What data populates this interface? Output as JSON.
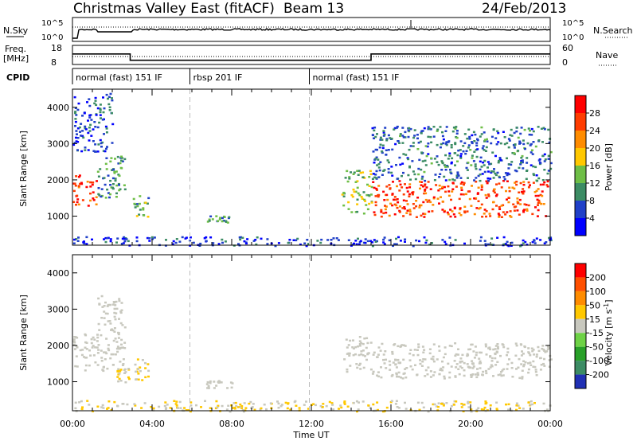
{
  "header": {
    "title": "Christmas Valley East (fitACF)",
    "beam": "Beam 13",
    "date": "24/Feb/2013"
  },
  "status_panels": {
    "nsky_label": "N.Sky",
    "nsky_ticks": [
      "10^5",
      "10^0"
    ],
    "nsearch_label": "N.Search",
    "freq_label_1": "Freq.",
    "freq_label_2": "[MHz]",
    "freq_ticks": [
      "18",
      "8"
    ],
    "nave_label": "Nave",
    "nave_ticks": [
      "60",
      "0"
    ],
    "cpid_label": "CPID",
    "cpid_segments": [
      {
        "label": "normal (fast) 151 IF",
        "start_hour": 0,
        "end_hour": 5.9
      },
      {
        "label": "rbsp 201 IF",
        "start_hour": 5.9,
        "end_hour": 11.9
      },
      {
        "label": "normal (fast) 151 IF",
        "start_hour": 11.9,
        "end_hour": 24
      }
    ],
    "freq_mhz": [
      {
        "start_hour": 0,
        "end_hour": 2.9,
        "value": 13.5
      },
      {
        "start_hour": 2.9,
        "end_hour": 15.0,
        "value": 10.2
      },
      {
        "start_hour": 15.0,
        "end_hour": 24,
        "value": 13.5
      }
    ]
  },
  "chart_data": [
    {
      "type": "heatmap",
      "name": "power",
      "ylabel": "Slant Range [km]",
      "xlabel": "",
      "x_ticks": [
        "00:00",
        "04:00",
        "08:00",
        "12:00",
        "16:00",
        "20:00",
        "00:00"
      ],
      "x_range_hours": [
        0,
        24
      ],
      "y_ticks": [
        "1000",
        "2000",
        "3000",
        "4000"
      ],
      "y_range_km": [
        200,
        4500
      ],
      "colorbar": {
        "label": "Power [dB]",
        "ticks": [
          "4",
          "8",
          "12",
          "16",
          "20",
          "24",
          "28"
        ],
        "range": [
          0,
          32
        ],
        "colors": [
          "#0000ff",
          "#2040c8",
          "#3c8c64",
          "#6ebe46",
          "#ffc800",
          "#ff8c00",
          "#ff3c00",
          "#ff0000"
        ]
      },
      "echo_regions": [
        {
          "t0": 0.0,
          "t1": 1.2,
          "r0": 1300,
          "r1": 2200,
          "level": 26
        },
        {
          "t0": 1.2,
          "t1": 2.6,
          "r0": 1500,
          "r1": 2800,
          "level": 10
        },
        {
          "t0": 0.0,
          "t1": 2.0,
          "r0": 2800,
          "r1": 4400,
          "level": 6
        },
        {
          "t0": 3.0,
          "t1": 3.8,
          "r0": 1000,
          "r1": 1600,
          "level": 12
        },
        {
          "t0": 6.7,
          "t1": 8.0,
          "r0": 850,
          "r1": 1050,
          "level": 10
        },
        {
          "t0": 13.5,
          "t1": 15.0,
          "r0": 1100,
          "r1": 2300,
          "level": 14
        },
        {
          "t0": 15.0,
          "t1": 24.0,
          "r0": 1000,
          "r1": 2000,
          "level": 26
        },
        {
          "t0": 15.0,
          "t1": 24.0,
          "r0": 2000,
          "r1": 3500,
          "level": 8
        },
        {
          "t0": 0.0,
          "t1": 24.0,
          "r0": 200,
          "r1": 450,
          "level": 5
        }
      ]
    },
    {
      "type": "heatmap",
      "name": "velocity",
      "ylabel": "Slant Range [km]",
      "xlabel": "Time UT",
      "x_ticks": [
        "00:00",
        "04:00",
        "08:00",
        "12:00",
        "16:00",
        "20:00",
        "00:00"
      ],
      "x_range_hours": [
        0,
        24
      ],
      "y_ticks": [
        "1000",
        "2000",
        "3000",
        "4000"
      ],
      "y_range_km": [
        200,
        4500
      ],
      "colorbar": {
        "label": "Velocity [m s-1]",
        "label_main": "Velocity [m s",
        "label_sup": "-1",
        "label_end": "]",
        "ticks": [
          "200",
          "100",
          "50",
          "15",
          "-15",
          "-50",
          "-100",
          "-200"
        ],
        "range": [
          -250,
          250
        ],
        "colors": [
          "#2030b4",
          "#3c8c64",
          "#28a028",
          "#6ed246",
          "#c8c8be",
          "#ffc800",
          "#ff8c00",
          "#ff5000",
          "#ff0000"
        ]
      },
      "echo_regions": [
        {
          "t0": 0.0,
          "t1": 2.6,
          "r0": 1300,
          "r1": 2400,
          "level": 0
        },
        {
          "t0": 1.2,
          "t1": 2.6,
          "r0": 2400,
          "r1": 3400,
          "level": 0
        },
        {
          "t0": 2.2,
          "t1": 2.8,
          "r0": 1000,
          "r1": 1400,
          "level": 30
        },
        {
          "t0": 3.0,
          "t1": 3.8,
          "r0": 1000,
          "r1": 1650,
          "level": 30
        },
        {
          "t0": 6.7,
          "t1": 8.0,
          "r0": 850,
          "r1": 1050,
          "level": 0
        },
        {
          "t0": 13.6,
          "t1": 15.0,
          "r0": 1300,
          "r1": 2300,
          "level": 0
        },
        {
          "t0": 15.0,
          "t1": 24.0,
          "r0": 1100,
          "r1": 2100,
          "level": 0
        },
        {
          "t0": 0.0,
          "t1": 24.0,
          "r0": 200,
          "r1": 500,
          "level": 30
        }
      ]
    }
  ]
}
